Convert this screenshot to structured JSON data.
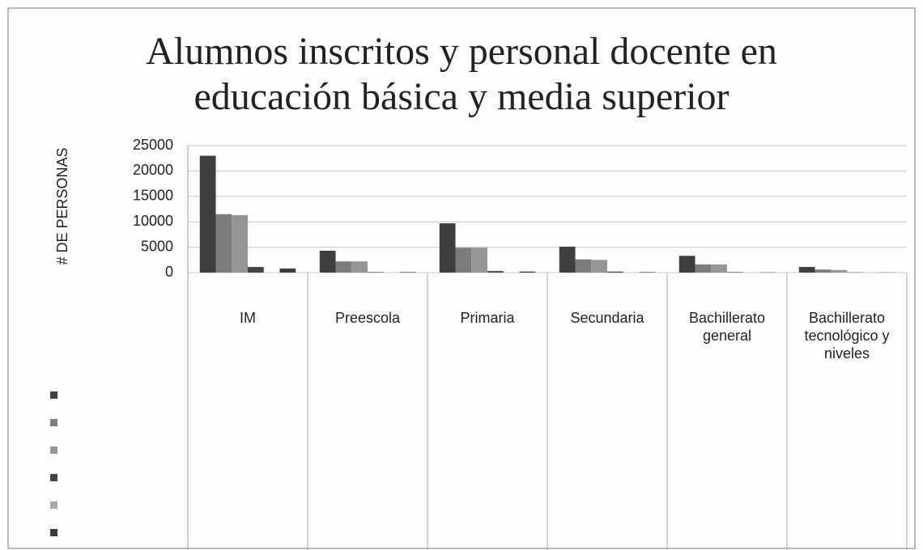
{
  "chart_data": {
    "type": "bar",
    "title": "Alumnos inscritos y personal docente en educación básica y media superior",
    "y_label": "# DE PERSONAS",
    "categories": [
      "IM",
      "Preescola",
      "Primaria",
      "Secundaria",
      "Bachillerato general",
      "Bachillerato tecnológico y niveles"
    ],
    "series": [
      {
        "color": "#3f3f3f",
        "values": [
          23000,
          4300,
          9700,
          5100,
          3300,
          1100
        ]
      },
      {
        "color": "#7c7c7c",
        "values": [
          11500,
          2200,
          4900,
          2600,
          1600,
          600
        ]
      },
      {
        "color": "#959595",
        "values": [
          11300,
          2200,
          4900,
          2500,
          1600,
          500
        ]
      },
      {
        "color": "#444444",
        "values": [
          1100,
          100,
          300,
          200,
          100,
          50
        ]
      },
      {
        "color": "#a8a8a8",
        "values": [
          0,
          0,
          0,
          0,
          0,
          0
        ]
      },
      {
        "color": "#3a3a3a",
        "values": [
          800,
          100,
          200,
          100,
          50,
          30
        ]
      }
    ],
    "ylim": [
      0,
      25000
    ],
    "yticks": [
      0,
      5000,
      10000,
      15000,
      20000,
      25000
    ],
    "grid": true
  }
}
